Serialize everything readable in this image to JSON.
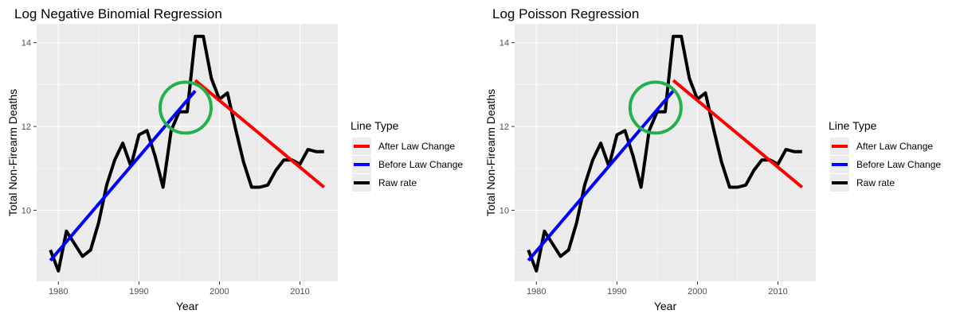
{
  "chart_data": [
    {
      "type": "line",
      "title": "Log Negative Binomial Regression",
      "xlabel": "Year",
      "ylabel": "Total Non-Firearm Deaths",
      "xlim": [
        1977.3,
        2014.7
      ],
      "ylim": [
        8.3,
        14.45
      ],
      "xticks": [
        "1980",
        "1990",
        "2000",
        "2010"
      ],
      "yticks": [
        "10",
        "12",
        "14"
      ],
      "grid": true,
      "legend": {
        "title": "Line Type",
        "position": "right",
        "entries": [
          "After Law Change",
          "Before Law Change",
          "Raw rate"
        ]
      },
      "series": [
        {
          "name": "After Law Change",
          "color": "#ff0000",
          "x": [
            1997,
            2013
          ],
          "y": [
            13.1,
            10.55
          ]
        },
        {
          "name": "Before Law Change",
          "color": "#0000ff",
          "x": [
            1979,
            1997
          ],
          "y": [
            8.8,
            12.85
          ]
        },
        {
          "name": "Raw rate",
          "color": "#000000",
          "x": [
            1979,
            1980,
            1981,
            1982,
            1983,
            1984,
            1985,
            1986,
            1987,
            1988,
            1989,
            1990,
            1991,
            1992,
            1993,
            1994,
            1995,
            1996,
            1997,
            1998,
            1999,
            2000,
            2001,
            2002,
            2003,
            2004,
            2005,
            2006,
            2007,
            2008,
            2009,
            2010,
            2011,
            2012,
            2013
          ],
          "y": [
            9.05,
            8.55,
            9.5,
            9.2,
            8.9,
            9.05,
            9.7,
            10.6,
            11.2,
            11.6,
            11.05,
            11.8,
            11.9,
            11.3,
            10.55,
            11.9,
            12.35,
            12.35,
            14.15,
            14.15,
            13.15,
            12.65,
            12.8,
            11.95,
            11.15,
            10.55,
            10.55,
            10.6,
            10.95,
            11.2,
            11.2,
            11.1,
            11.45,
            11.4,
            11.4
          ]
        }
      ],
      "annotations": [
        {
          "shape": "circle",
          "color": "#22b14c",
          "x": 1995.8,
          "y": 12.45
        }
      ]
    },
    {
      "type": "line",
      "title": "Log Poisson Regression",
      "xlabel": "Year",
      "ylabel": "Total Non-Firearm Deaths",
      "xlim": [
        1977.3,
        2014.7
      ],
      "ylim": [
        8.3,
        14.45
      ],
      "xticks": [
        "1980",
        "1990",
        "2000",
        "2010"
      ],
      "yticks": [
        "10",
        "12",
        "14"
      ],
      "grid": true,
      "legend": {
        "title": "Line Type",
        "position": "right",
        "entries": [
          "After Law Change",
          "Before Law Change",
          "Raw rate"
        ]
      },
      "series": [
        {
          "name": "After Law Change",
          "color": "#ff0000",
          "x": [
            1997,
            2013
          ],
          "y": [
            13.1,
            10.55
          ]
        },
        {
          "name": "Before Law Change",
          "color": "#0000ff",
          "x": [
            1979,
            1997
          ],
          "y": [
            8.8,
            12.85
          ]
        },
        {
          "name": "Raw rate",
          "color": "#000000",
          "x": [
            1979,
            1980,
            1981,
            1982,
            1983,
            1984,
            1985,
            1986,
            1987,
            1988,
            1989,
            1990,
            1991,
            1992,
            1993,
            1994,
            1995,
            1996,
            1997,
            1998,
            1999,
            2000,
            2001,
            2002,
            2003,
            2004,
            2005,
            2006,
            2007,
            2008,
            2009,
            2010,
            2011,
            2012,
            2013
          ],
          "y": [
            9.05,
            8.55,
            9.5,
            9.2,
            8.9,
            9.05,
            9.7,
            10.6,
            11.2,
            11.6,
            11.05,
            11.8,
            11.9,
            11.3,
            10.55,
            11.9,
            12.35,
            12.35,
            14.15,
            14.15,
            13.15,
            12.65,
            12.8,
            11.95,
            11.15,
            10.55,
            10.55,
            10.6,
            10.95,
            11.2,
            11.2,
            11.1,
            11.45,
            11.4,
            11.4
          ]
        }
      ],
      "annotations": [
        {
          "shape": "circle",
          "color": "#22b14c",
          "x": 1994.8,
          "y": 12.45
        }
      ]
    }
  ]
}
